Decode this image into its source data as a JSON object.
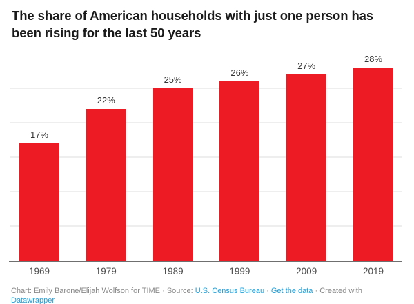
{
  "colors": {
    "bar": "#ed1c24",
    "link": "#1f9fd8",
    "title_text": "#1a1a1a",
    "footer_text": "#888888",
    "value_label_text": "#333333",
    "axis_label_text": "#4d4d4d",
    "gridline": "#eeeeee",
    "baseline": "#6f6f6f"
  },
  "chart_data": {
    "type": "bar",
    "title": "The share of American households with just one person has been rising for the last 50 years",
    "categories": [
      "1969",
      "1979",
      "1989",
      "1999",
      "2009",
      "2019"
    ],
    "values": [
      17,
      22,
      25,
      26,
      27,
      28
    ],
    "value_labels": [
      "17%",
      "22%",
      "25%",
      "26%",
      "27%",
      "28%"
    ],
    "unit": "%",
    "xlabel": "",
    "ylabel": "",
    "ylim": [
      0,
      29
    ],
    "gridlines": [
      5,
      10,
      15,
      20,
      25
    ],
    "grid": true,
    "legend_position": "none"
  },
  "footer": {
    "credit": "Chart: Emily Barone/Elijah Wolfson for TIME",
    "separator": "·",
    "source_label": "Source:",
    "source_link": "U.S. Census Bureau",
    "get_data_link": "Get the data",
    "created_with": "Created with",
    "datawrapper_link": "Datawrapper"
  }
}
